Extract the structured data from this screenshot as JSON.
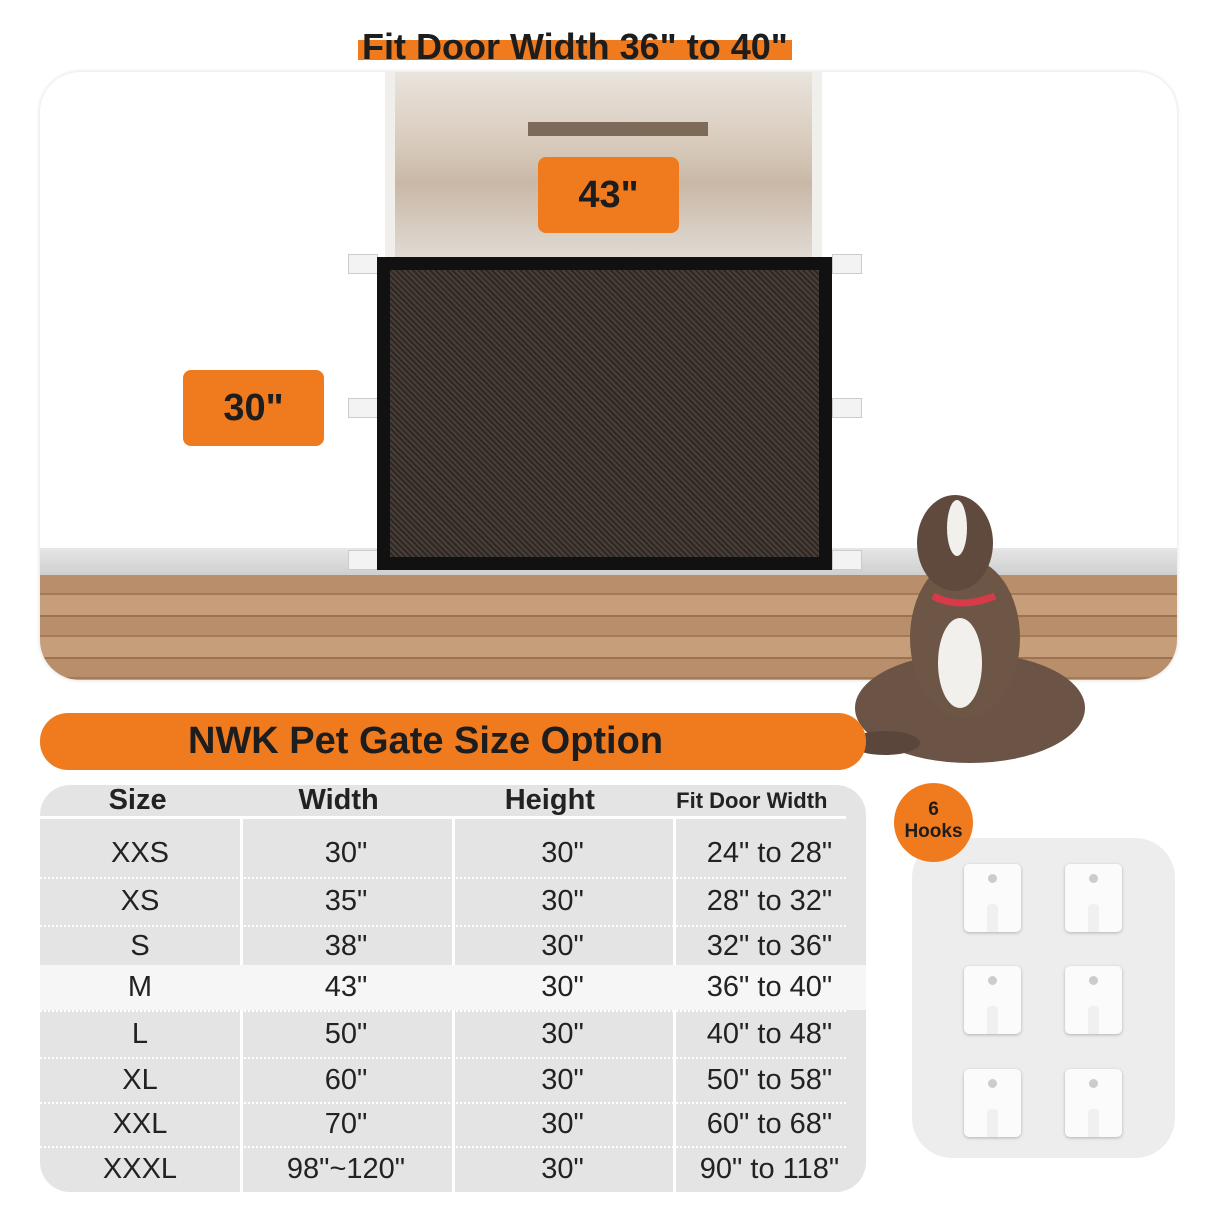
{
  "title": "Fit Door Width 36\" to 40\"",
  "dimensions": {
    "width": "43\"",
    "height": "30\""
  },
  "size_bar": "NWK Pet Gate Size Option",
  "table": {
    "headers": [
      "Size",
      "Width",
      "Height",
      "Fit Door Width"
    ],
    "rows": [
      [
        "XXS",
        "30\"",
        "30\"",
        "24\" to 28\""
      ],
      [
        "XS",
        "35\"",
        "30\"",
        "28\" to 32\""
      ],
      [
        "S",
        "38\"",
        "30\"",
        "32\" to 36\""
      ],
      [
        "M",
        "43\"",
        "30\"",
        "36\" to 40\""
      ],
      [
        "L",
        "50\"",
        "30\"",
        "40\" to 48\""
      ],
      [
        "XL",
        "60\"",
        "30\"",
        "50\" to 58\""
      ],
      [
        "XXL",
        "70\"",
        "30\"",
        "60\" to 68\""
      ],
      [
        "XXXL",
        "98\"~120\"",
        "30\"",
        "90\" to 118\""
      ]
    ],
    "highlighted_size": "M"
  },
  "hooks_badge": {
    "count": "6",
    "label": "Hooks"
  },
  "colors": {
    "accent": "#f07a1e",
    "table_bg": "#e4e4e4",
    "gate": "#111111"
  }
}
